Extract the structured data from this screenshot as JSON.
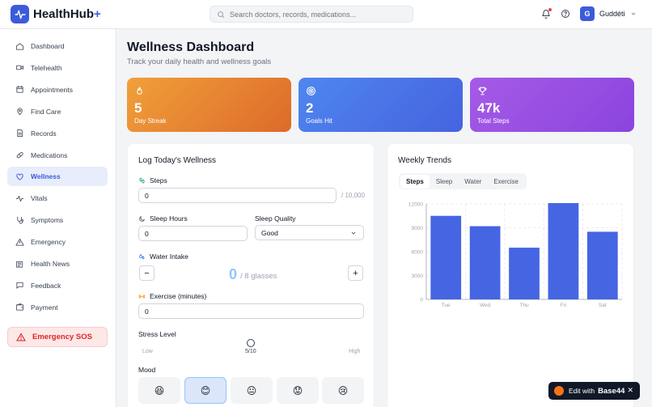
{
  "app": {
    "name": "HealthHub",
    "name_suffix": "+"
  },
  "search": {
    "placeholder": "Search doctors, records, medications..."
  },
  "user": {
    "initial": "G",
    "name": "Guddéti"
  },
  "sidebar": {
    "items": [
      {
        "label": "Dashboard",
        "icon": "home-icon"
      },
      {
        "label": "Telehealth",
        "icon": "video-icon"
      },
      {
        "label": "Appointments",
        "icon": "calendar-icon"
      },
      {
        "label": "Find Care",
        "icon": "map-pin-icon"
      },
      {
        "label": "Records",
        "icon": "file-icon"
      },
      {
        "label": "Medications",
        "icon": "pill-icon"
      },
      {
        "label": "Wellness",
        "icon": "heart-icon",
        "active": true
      },
      {
        "label": "Vitals",
        "icon": "activity-icon"
      },
      {
        "label": "Symptoms",
        "icon": "stethoscope-icon"
      },
      {
        "label": "Emergency",
        "icon": "alert-triangle-icon"
      },
      {
        "label": "Health News",
        "icon": "newspaper-icon"
      },
      {
        "label": "Feedback",
        "icon": "message-icon"
      },
      {
        "label": "Payment",
        "icon": "wallet-icon"
      }
    ],
    "sos_label": "Emergency SOS"
  },
  "page": {
    "title": "Wellness Dashboard",
    "subtitle": "Track your daily health and wellness goals"
  },
  "stats": [
    {
      "value": "5",
      "label": "Day Streak",
      "icon": "flame-icon",
      "color": "#e8862e"
    },
    {
      "value": "2",
      "label": "Goals Hit",
      "icon": "target-icon",
      "color": "#4a73e8"
    },
    {
      "value": "47k",
      "label": "Total Steps",
      "icon": "trophy-icon",
      "color": "#9a4ee0"
    }
  ],
  "log": {
    "title": "Log Today's Wellness",
    "steps_label": "Steps",
    "steps_value": "0",
    "steps_goal": "/ 10,000",
    "sleep_hours_label": "Sleep Hours",
    "sleep_hours_value": "0",
    "sleep_quality_label": "Sleep Quality",
    "sleep_quality_value": "Good",
    "water_label": "Water Intake",
    "water_value": "0",
    "water_unit": "/ 8 glasses",
    "minus": "−",
    "plus": "+",
    "exercise_label": "Exercise (minutes)",
    "exercise_value": "0",
    "stress_label": "Stress Level",
    "stress_low": "Low",
    "stress_value_text": "5/10",
    "stress_high": "High",
    "stress_level": 5,
    "stress_max": 10,
    "mood_label": "Mood",
    "moods": [
      "😆",
      "😊",
      "😐",
      "😟",
      "😢"
    ],
    "mood_selected": 1
  },
  "trends": {
    "title": "Weekly Trends",
    "tabs": [
      "Steps",
      "Sleep",
      "Water",
      "Exercise"
    ],
    "active_tab": 0
  },
  "chart_data": {
    "type": "bar",
    "categories": [
      "Tue",
      "Wed",
      "Thu",
      "Fri",
      "Sat"
    ],
    "values": [
      10500,
      9200,
      6500,
      12100,
      8500
    ],
    "ylim": [
      0,
      12000
    ],
    "yticks": [
      0,
      3000,
      6000,
      9000,
      12000
    ],
    "bar_color": "#4565e3",
    "grid": true
  },
  "badge": {
    "text": "Edit with",
    "brand": "Base44",
    "close": "✕"
  }
}
